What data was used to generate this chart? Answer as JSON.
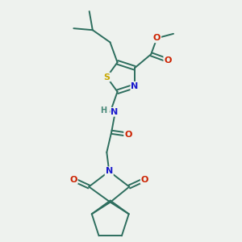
{
  "bg_color": "#eef2ee",
  "bond_color": "#2d6e5e",
  "S_color": "#c8a800",
  "N_color": "#1a1acc",
  "O_color": "#cc2200",
  "H_color": "#4a8a7a",
  "font_size": 7.5,
  "lw": 1.4,
  "xlim": [
    0,
    10
  ],
  "ylim": [
    0,
    10
  ]
}
